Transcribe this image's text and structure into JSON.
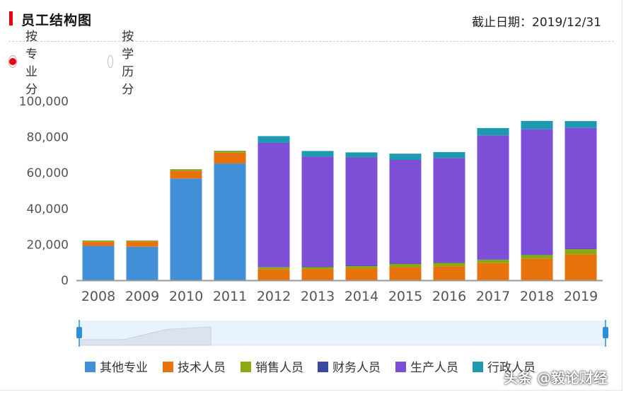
{
  "header": {
    "title": "员工结构图",
    "date_label": "截止日期：",
    "date_value": "2019/12/31"
  },
  "view_options": {
    "selected": "by_major",
    "options": [
      {
        "id": "by_major",
        "label": "按专业分"
      },
      {
        "id": "by_education",
        "label": "按学历分"
      }
    ]
  },
  "chart_data": {
    "type": "bar",
    "stacked": true,
    "categories": [
      "2008",
      "2009",
      "2010",
      "2011",
      "2012",
      "2013",
      "2014",
      "2015",
      "2016",
      "2017",
      "2018",
      "2019"
    ],
    "ylim": [
      0,
      100000
    ],
    "yticks": [
      0,
      20000,
      40000,
      60000,
      80000,
      100000
    ],
    "ytick_labels": [
      "0",
      "20,000",
      "40,000",
      "60,000",
      "80,000",
      "100,000"
    ],
    "grid": false,
    "legend_position": "bottom",
    "series": [
      {
        "name": "其他专业",
        "color": "#4190d7",
        "values": [
          19200,
          18700,
          56800,
          65200,
          0,
          0,
          0,
          0,
          0,
          0,
          0,
          0
        ]
      },
      {
        "name": "技术人员",
        "color": "#e8720c",
        "values": [
          2300,
          3000,
          4300,
          6000,
          6200,
          6300,
          6700,
          7300,
          7800,
          9600,
          12000,
          14500
        ]
      },
      {
        "name": "销售人员",
        "color": "#8aaa12",
        "values": [
          600,
          400,
          800,
          1000,
          1000,
          1000,
          1200,
          1800,
          1900,
          1800,
          2100,
          2800
        ]
      },
      {
        "name": "财务人员",
        "color": "#3b4a9e",
        "values": [
          100,
          100,
          100,
          100,
          200,
          200,
          200,
          200,
          200,
          200,
          300,
          300
        ]
      },
      {
        "name": "生产人员",
        "color": "#7c4fd6",
        "values": [
          0,
          0,
          0,
          0,
          69300,
          61500,
          60500,
          57900,
          58400,
          69300,
          69900,
          67500
        ]
      },
      {
        "name": "行政人员",
        "color": "#1e9ab0",
        "values": [
          0,
          0,
          0,
          0,
          3800,
          3200,
          2800,
          3500,
          3300,
          4100,
          4700,
          3800
        ]
      }
    ]
  },
  "watermark": "头条 @毅论财经"
}
